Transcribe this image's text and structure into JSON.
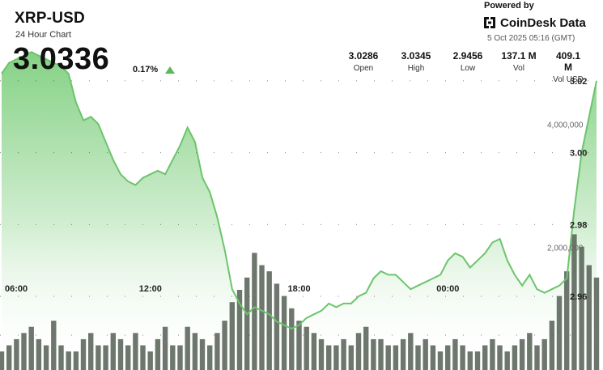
{
  "header": {
    "title": "XRP-USD",
    "subtitle": "24 Hour Chart",
    "price": "3.0336",
    "change": "0.17%",
    "powered_by": "Powered by",
    "brand": "CoinDesk Data",
    "timestamp": "5 Oct 2025 05:16 (GMT)"
  },
  "stats": [
    {
      "value": "3.0286",
      "label": "Open"
    },
    {
      "value": "3.0345",
      "label": "High"
    },
    {
      "value": "2.9456",
      "label": "Low"
    },
    {
      "value": "137.1 M",
      "label": "Vol"
    },
    {
      "value": "409.1 M",
      "label": "Vol USD"
    }
  ],
  "colors": {
    "line": "#6cc46c",
    "area_top": "#7fcf7f",
    "area_bottom": "#ffffff",
    "volume": "#555f55",
    "up": "#5cb85c"
  },
  "chart_data": {
    "type": "area",
    "x_ticks": [
      "06:00",
      "12:00",
      "18:00",
      "00:00"
    ],
    "y_ticks": [
      "3.02",
      "3.00",
      "2.98",
      "2.96"
    ],
    "y_range": [
      2.9395,
      3.0425
    ],
    "volume_ticks": [
      "4,000,000",
      "2,000,000"
    ],
    "volume_range": [
      0,
      6000000
    ],
    "x_hours": [
      0,
      0.3,
      0.6,
      0.9,
      1.2,
      1.5,
      1.8,
      2.1,
      2.4,
      2.7,
      3,
      3.3,
      3.6,
      3.9,
      4.2,
      4.5,
      4.8,
      5.1,
      5.4,
      5.7,
      6,
      6.3,
      6.6,
      6.9,
      7.2,
      7.5,
      7.8,
      8.1,
      8.4,
      8.7,
      9,
      9.3,
      9.6,
      9.9,
      10.2,
      10.5,
      10.8,
      11.1,
      11.4,
      11.7,
      12,
      12.3,
      12.6,
      12.9,
      13.2,
      13.5,
      13.8,
      14.1,
      14.4,
      14.7,
      15,
      15.3,
      15.6,
      15.9,
      16.2,
      16.5,
      16.8,
      17.1,
      17.4,
      17.7,
      18,
      18.3,
      18.6,
      18.9,
      19.2,
      19.5,
      19.8,
      20.1,
      20.4,
      20.7,
      21,
      21.3,
      21.6,
      21.9,
      22.2,
      22.5,
      22.8,
      23.1,
      23.4,
      23.7,
      24
    ],
    "price": [
      3.022,
      3.025,
      3.026,
      3.027,
      3.028,
      3.027,
      3.026,
      3.025,
      3.024,
      3.022,
      3.014,
      3.009,
      3.01,
      3.008,
      3.003,
      2.998,
      2.994,
      2.992,
      2.991,
      2.993,
      2.994,
      2.995,
      2.994,
      2.998,
      3.002,
      3.007,
      3.003,
      2.993,
      2.989,
      2.982,
      2.973,
      2.962,
      2.958,
      2.955,
      2.957,
      2.956,
      2.955,
      2.953,
      2.952,
      2.951,
      2.952,
      2.954,
      2.955,
      2.956,
      2.958,
      2.957,
      2.958,
      2.958,
      2.96,
      2.961,
      2.965,
      2.967,
      2.966,
      2.966,
      2.964,
      2.962,
      2.963,
      2.964,
      2.965,
      2.966,
      2.97,
      2.972,
      2.971,
      2.968,
      2.97,
      2.972,
      2.975,
      2.976,
      2.97,
      2.966,
      2.963,
      2.966,
      2.962,
      2.961,
      2.962,
      2.963,
      2.965,
      2.984,
      3.0,
      3.01,
      3.02
    ],
    "volume": [
      0.3,
      0.4,
      0.5,
      0.6,
      0.7,
      0.5,
      0.4,
      0.8,
      0.4,
      0.3,
      0.3,
      0.5,
      0.6,
      0.4,
      0.4,
      0.6,
      0.5,
      0.4,
      0.6,
      0.4,
      0.3,
      0.5,
      0.7,
      0.4,
      0.4,
      0.7,
      0.6,
      0.5,
      0.4,
      0.6,
      0.8,
      1.1,
      1.3,
      1.5,
      1.9,
      1.7,
      1.6,
      1.4,
      1.2,
      1.0,
      0.8,
      0.7,
      0.6,
      0.5,
      0.4,
      0.4,
      0.5,
      0.4,
      0.6,
      0.7,
      0.5,
      0.5,
      0.4,
      0.4,
      0.5,
      0.6,
      0.4,
      0.5,
      0.4,
      0.3,
      0.4,
      0.5,
      0.4,
      0.3,
      0.3,
      0.4,
      0.5,
      0.4,
      0.3,
      0.4,
      0.5,
      0.6,
      0.4,
      0.5,
      0.8,
      1.2,
      1.6,
      2.2,
      2.0,
      1.7,
      1.5
    ]
  }
}
